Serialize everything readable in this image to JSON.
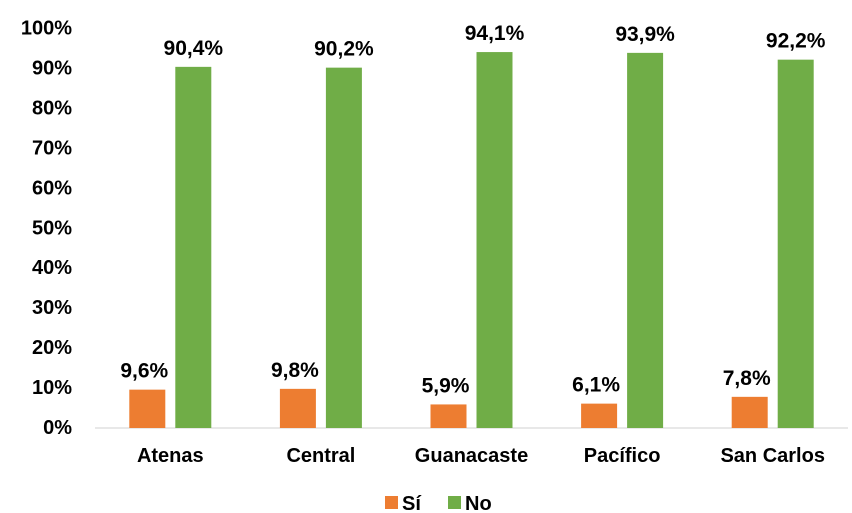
{
  "chart_data": {
    "type": "bar",
    "categories": [
      "Atenas",
      "Central",
      "Guanacaste",
      "Pacífico",
      "San Carlos"
    ],
    "series": [
      {
        "name": "Sí",
        "values": [
          9.6,
          9.8,
          5.9,
          6.1,
          7.8
        ],
        "labels": [
          "9,6%",
          "9,8%",
          "5,9%",
          "6,1%",
          "7,8%"
        ],
        "color": "#ED7D31"
      },
      {
        "name": "No",
        "values": [
          90.4,
          90.2,
          94.1,
          93.9,
          92.2
        ],
        "labels": [
          "90,4%",
          "90,2%",
          "94,1%",
          "93,9%",
          "92,2%"
        ],
        "color": "#70AD47"
      }
    ],
    "yticks": [
      "0%",
      "10%",
      "20%",
      "30%",
      "40%",
      "50%",
      "60%",
      "70%",
      "80%",
      "90%",
      "100%"
    ],
    "ylim": [
      0,
      100
    ],
    "grid": false,
    "legend_position": "bottom"
  }
}
